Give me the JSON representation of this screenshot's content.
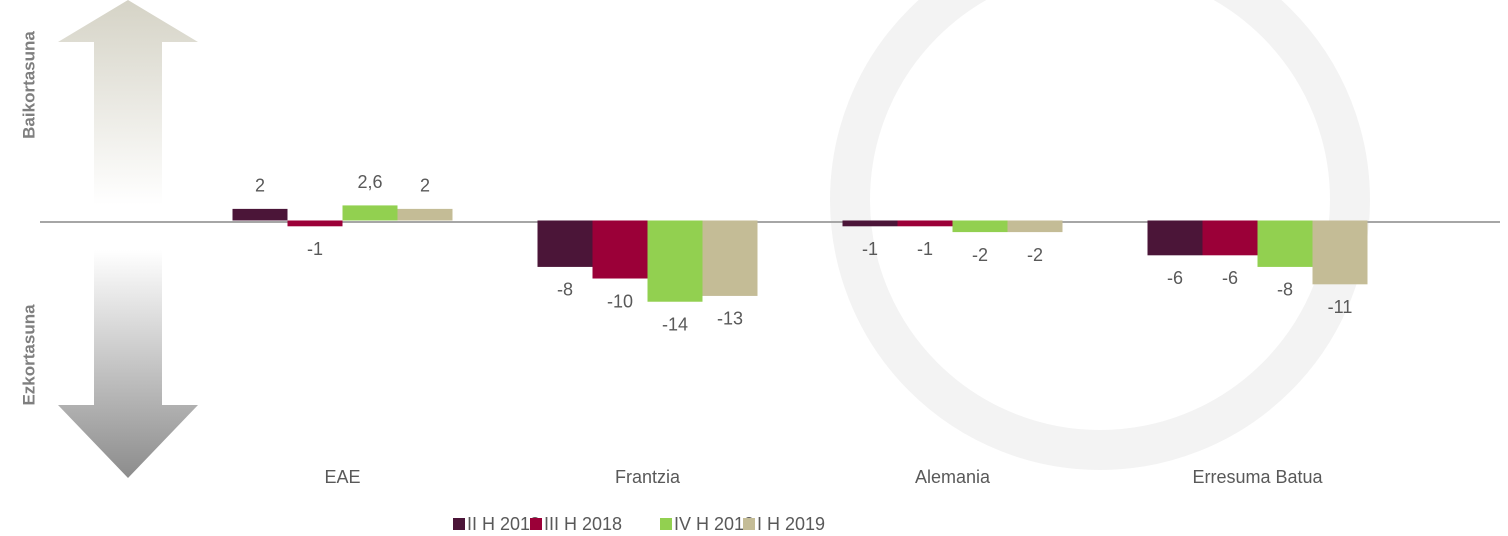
{
  "chart_data": {
    "type": "bar",
    "categories": [
      "EAE",
      "Frantzia",
      "Alemania",
      "Erresuma Batua"
    ],
    "series": [
      {
        "name": "II H 2018",
        "color": "#4b1538",
        "values": [
          2,
          -8,
          -1,
          -6
        ]
      },
      {
        "name": "III H 2018",
        "color": "#9b0038",
        "values": [
          -1,
          -10,
          -1,
          -6
        ]
      },
      {
        "name": "IV H 2018",
        "color": "#92d050",
        "values": [
          2.6,
          -14,
          -2,
          -8
        ],
        "value_labels": [
          "2,6",
          "-14",
          "-2",
          "-8"
        ]
      },
      {
        "name": "I H 2019",
        "color": "#c4bc96",
        "values": [
          2,
          -13,
          -2,
          -11
        ]
      }
    ],
    "annotations": [
      "Baikortasuna",
      "Ezkortasuna"
    ],
    "ylim": [
      -43,
      38
    ],
    "grid": false,
    "legend": "bottom"
  }
}
